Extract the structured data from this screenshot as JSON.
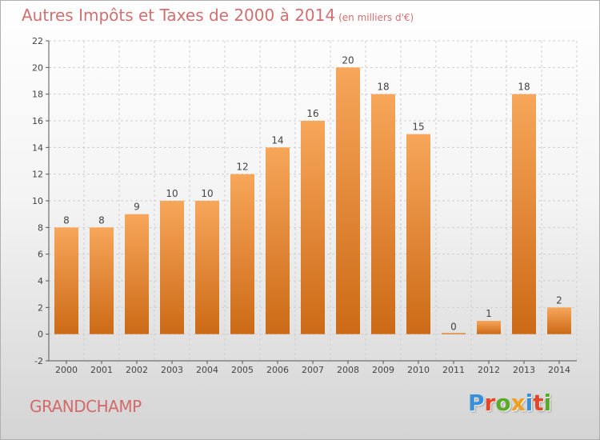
{
  "header": {
    "title": "Autres Impôts et Taxes de 2000 à 2014",
    "unit": "(en milliers d'€)"
  },
  "footer": {
    "commune": "GRANDCHAMP",
    "logo_text": "Proxiti",
    "logo_colors": [
      "#3a8fd9",
      "#e5462a",
      "#5aaa2a",
      "#f0a020",
      "#3a8fd9",
      "#e5462a",
      "#5aaa2a"
    ]
  },
  "colors": {
    "bar_top": "#f7a65a",
    "bar_bottom": "#cc6a16",
    "axis": "#555555",
    "grid": "#cfcfcf",
    "text": "#444444"
  },
  "chart_data": {
    "type": "bar",
    "categories": [
      "2000",
      "2001",
      "2002",
      "2003",
      "2004",
      "2005",
      "2006",
      "2007",
      "2008",
      "2009",
      "2010",
      "2011",
      "2012",
      "2013",
      "2014"
    ],
    "values": [
      8,
      8,
      9,
      10,
      10,
      12,
      14,
      16,
      20,
      18,
      15,
      0,
      1,
      18,
      2
    ],
    "title": "Autres Impôts et Taxes de 2000 à 2014",
    "unit": "(en milliers d'€)",
    "xlabel": "",
    "ylabel": "",
    "ylim": [
      -2,
      22
    ],
    "yticks": [
      -2,
      0,
      2,
      4,
      6,
      8,
      10,
      12,
      14,
      16,
      18,
      20,
      22
    ],
    "grid": true,
    "legend": "none"
  }
}
